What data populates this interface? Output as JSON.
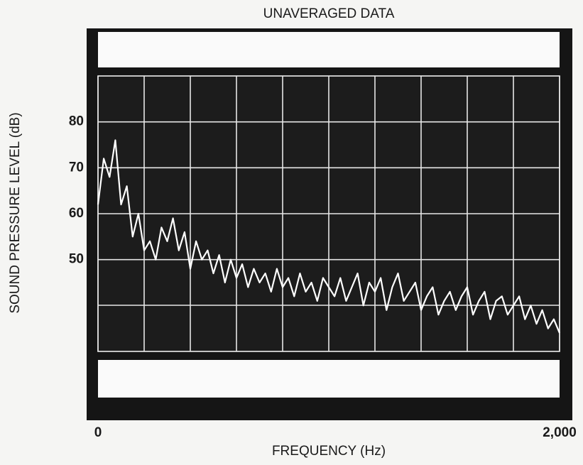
{
  "chart_data": {
    "type": "line",
    "title": "UNAVERAGED DATA",
    "x_label": "FREQUENCY (Hz)",
    "y_label": "SOUND PRESSURE LEVEL (dB)",
    "x": [
      0,
      25,
      50,
      75,
      100,
      125,
      150,
      175,
      200,
      225,
      250,
      275,
      300,
      325,
      350,
      375,
      400,
      425,
      450,
      475,
      500,
      525,
      550,
      575,
      600,
      625,
      650,
      675,
      700,
      725,
      750,
      775,
      800,
      825,
      850,
      875,
      900,
      925,
      950,
      975,
      1000,
      1025,
      1050,
      1075,
      1100,
      1125,
      1150,
      1175,
      1200,
      1225,
      1250,
      1275,
      1300,
      1325,
      1350,
      1375,
      1400,
      1425,
      1450,
      1475,
      1500,
      1525,
      1550,
      1575,
      1600,
      1625,
      1650,
      1675,
      1700,
      1725,
      1750,
      1775,
      1800,
      1825,
      1850,
      1875,
      1900,
      1925,
      1950,
      1975,
      2000
    ],
    "values": [
      62,
      72,
      68,
      76,
      62,
      66,
      55,
      60,
      52,
      54,
      50,
      57,
      54,
      59,
      52,
      56,
      48,
      54,
      50,
      52,
      47,
      51,
      45,
      50,
      46,
      49,
      44,
      48,
      45,
      47,
      43,
      48,
      44,
      46,
      42,
      47,
      43,
      45,
      41,
      46,
      44,
      42,
      46,
      41,
      44,
      47,
      40,
      45,
      43,
      46,
      39,
      44,
      47,
      41,
      43,
      45,
      39,
      42,
      44,
      38,
      41,
      43,
      39,
      42,
      44,
      38,
      41,
      43,
      37,
      41,
      42,
      38,
      40,
      42,
      37,
      40,
      36,
      39,
      35,
      37,
      34
    ],
    "color": "#ffffff",
    "xlim": [
      0,
      2000
    ],
    "xticks": [
      0,
      {
        "value": 2000,
        "label": "2,000"
      }
    ],
    "ylim": [
      30,
      90
    ],
    "yticks": [
      50,
      60,
      70,
      80
    ],
    "grid": true
  }
}
